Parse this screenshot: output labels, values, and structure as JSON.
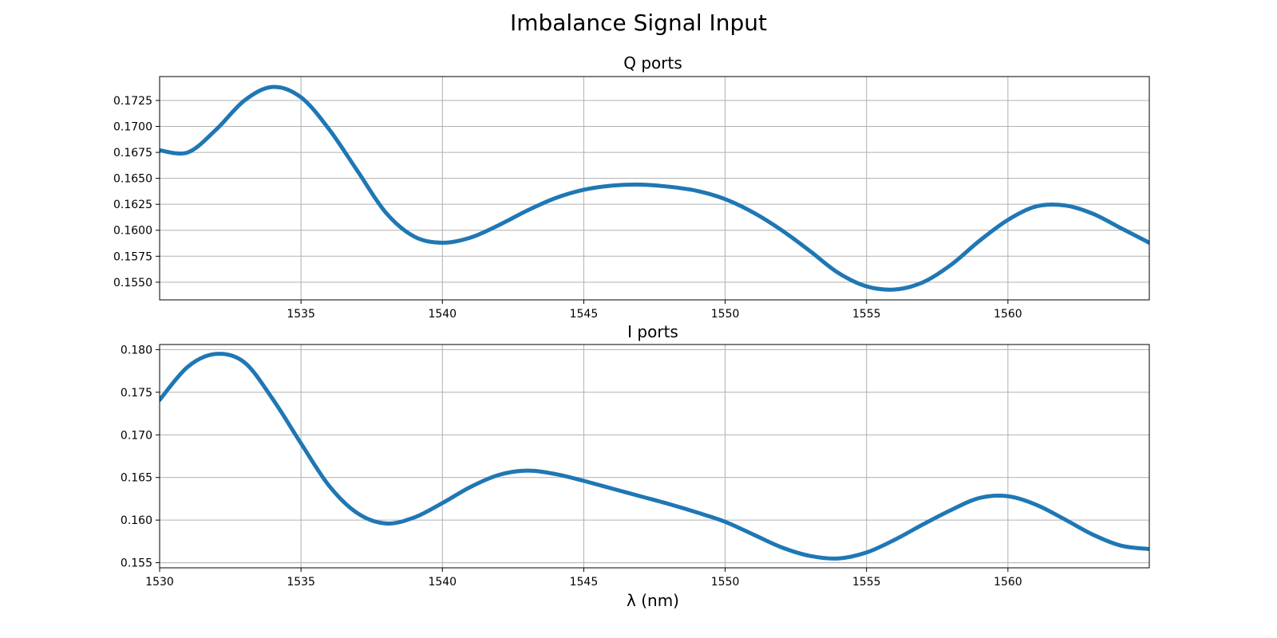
{
  "figure": {
    "title": "Imbalance Signal Input"
  },
  "chart_data": [
    {
      "type": "line",
      "title": "Q ports",
      "xlabel": "",
      "ylabel": "",
      "xlim": [
        1530,
        1565
      ],
      "ylim": [
        0.1533,
        0.1748
      ],
      "xticks": [
        1535,
        1540,
        1545,
        1550,
        1555,
        1560
      ],
      "yticks": [
        0.155,
        0.1575,
        0.16,
        0.1625,
        0.165,
        0.1675,
        0.17,
        0.1725
      ],
      "ytick_labels": [
        "0.1550",
        "0.1575",
        "0.1600",
        "0.1625",
        "0.1650",
        "0.1675",
        "0.1700",
        "0.1725"
      ],
      "grid": true,
      "line_color": "#1f77b4",
      "series": [
        {
          "x": [
            1530,
            1531,
            1532,
            1533,
            1534,
            1535,
            1536,
            1537,
            1538,
            1539,
            1540,
            1541,
            1542,
            1543,
            1544,
            1545,
            1546,
            1547,
            1548,
            1549,
            1550,
            1551,
            1552,
            1553,
            1554,
            1555,
            1556,
            1557,
            1558,
            1559,
            1560,
            1561,
            1562,
            1563,
            1564,
            1565
          ],
          "values": [
            0.1677,
            0.1675,
            0.1697,
            0.1725,
            0.1738,
            0.1728,
            0.1697,
            0.1657,
            0.1617,
            0.1594,
            0.1588,
            0.1593,
            0.1605,
            0.1619,
            0.1631,
            0.1639,
            0.1643,
            0.1644,
            0.1642,
            0.1638,
            0.163,
            0.1617,
            0.16,
            0.158,
            0.1559,
            0.1546,
            0.1543,
            0.155,
            0.1567,
            0.159,
            0.161,
            0.1623,
            0.1624,
            0.1616,
            0.1602,
            0.1588
          ]
        }
      ]
    },
    {
      "type": "line",
      "title": "I ports",
      "xlabel": "λ (nm)",
      "ylabel": "",
      "xlim": [
        1530,
        1565
      ],
      "ylim": [
        0.1544,
        0.1806
      ],
      "xticks": [
        1530,
        1535,
        1540,
        1545,
        1550,
        1555,
        1560
      ],
      "yticks": [
        0.155,
        0.16,
        0.165,
        0.17,
        0.175,
        0.18
      ],
      "ytick_labels": [
        "0.155",
        "0.160",
        "0.165",
        "0.170",
        "0.175",
        "0.180"
      ],
      "grid": true,
      "line_color": "#1f77b4",
      "series": [
        {
          "x": [
            1530,
            1531,
            1532,
            1533,
            1534,
            1535,
            1536,
            1537,
            1538,
            1539,
            1540,
            1541,
            1542,
            1543,
            1544,
            1545,
            1546,
            1547,
            1548,
            1549,
            1550,
            1551,
            1552,
            1553,
            1554,
            1555,
            1556,
            1557,
            1558,
            1559,
            1560,
            1561,
            1562,
            1563,
            1564,
            1565
          ],
          "values": [
            0.1741,
            0.178,
            0.1795,
            0.1785,
            0.1742,
            0.169,
            0.164,
            0.1608,
            0.1596,
            0.1603,
            0.162,
            0.1639,
            0.1653,
            0.1658,
            0.1654,
            0.1646,
            0.1637,
            0.1628,
            0.1619,
            0.1609,
            0.1598,
            0.1583,
            0.1568,
            0.1558,
            0.1555,
            0.1562,
            0.1577,
            0.1595,
            0.1612,
            0.1626,
            0.1628,
            0.1618,
            0.1601,
            0.1583,
            0.157,
            0.1566
          ]
        }
      ]
    }
  ]
}
